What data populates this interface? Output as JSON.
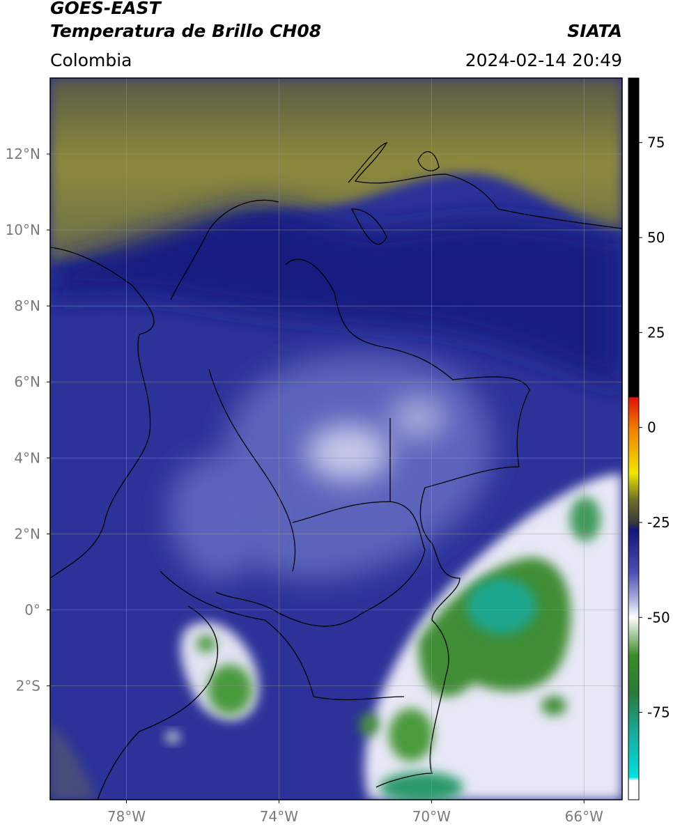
{
  "header": {
    "title": "GOES-EAST",
    "subtitle": "Temperatura de Brillo CH08",
    "source": "SIATA",
    "region": "Colombia",
    "datetime": "2024-02-14 20:49"
  },
  "map": {
    "lonlim": [
      -80,
      -65
    ],
    "latlim": [
      -5,
      14
    ],
    "lon_ticks": [
      {
        "value": -78,
        "label": "78°W"
      },
      {
        "value": -74,
        "label": "74°W"
      },
      {
        "value": -70,
        "label": "70°W"
      },
      {
        "value": -66,
        "label": "66°W"
      }
    ],
    "lat_ticks": [
      {
        "value": 12,
        "label": "12°N"
      },
      {
        "value": 10,
        "label": "10°N"
      },
      {
        "value": 8,
        "label": "8°N"
      },
      {
        "value": 6,
        "label": "6°N"
      },
      {
        "value": 4,
        "label": "4°N"
      },
      {
        "value": 2,
        "label": "2°N"
      },
      {
        "value": 0,
        "label": "0°"
      },
      {
        "value": -2,
        "label": "2°S"
      }
    ],
    "grid": true
  },
  "colorbar": {
    "lim": [
      -98,
      92
    ],
    "ticks": [
      75,
      50,
      25,
      0,
      -25,
      -50,
      -75
    ],
    "colormap": [
      [
        92,
        "#000000"
      ],
      [
        8,
        "#000000"
      ],
      [
        7.9,
        "#e0100a"
      ],
      [
        0,
        "#f07c00"
      ],
      [
        -12,
        "#f2e600"
      ],
      [
        -19,
        "#6e6e2a"
      ],
      [
        -25,
        "#3a3a3a"
      ],
      [
        -27,
        "#14167a"
      ],
      [
        -38,
        "#4a4fb0"
      ],
      [
        -45,
        "#a9abd9"
      ],
      [
        -50,
        "#ffffff"
      ],
      [
        -60,
        "#3c8a2a"
      ],
      [
        -70,
        "#2a7a3a"
      ],
      [
        -80,
        "#1aa89a"
      ],
      [
        -92,
        "#00e0e0"
      ],
      [
        -93,
        "#ffffff"
      ],
      [
        -98,
        "#ffffff"
      ]
    ]
  }
}
